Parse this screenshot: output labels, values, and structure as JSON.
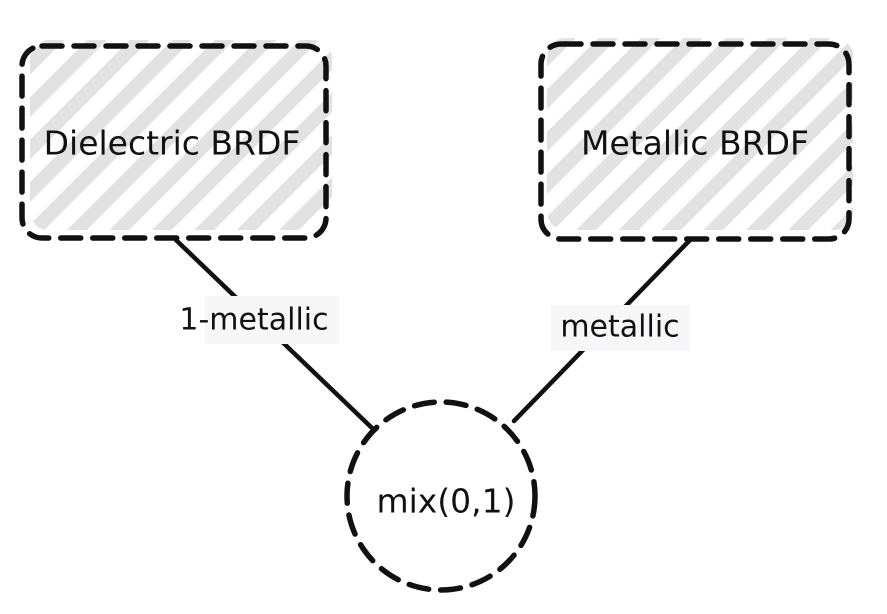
{
  "diagram": {
    "nodes": {
      "dielectric": {
        "label": "Dielectric BRDF",
        "shape": "rounded-rectangle",
        "fill": "hatched"
      },
      "metallic": {
        "label": "Metallic BRDF",
        "shape": "rounded-rectangle",
        "fill": "hatched"
      },
      "mix": {
        "label": "mix(0,1)",
        "shape": "circle",
        "fill": "none"
      }
    },
    "edges": [
      {
        "from": "dielectric",
        "to": "mix",
        "label": "1-metallic"
      },
      {
        "from": "metallic",
        "to": "mix",
        "label": "metallic"
      }
    ]
  },
  "colors": {
    "stroke": "#111111",
    "hatch": "#e2e2e2",
    "label_background": "#f7f7f9",
    "background": "#ffffff"
  }
}
